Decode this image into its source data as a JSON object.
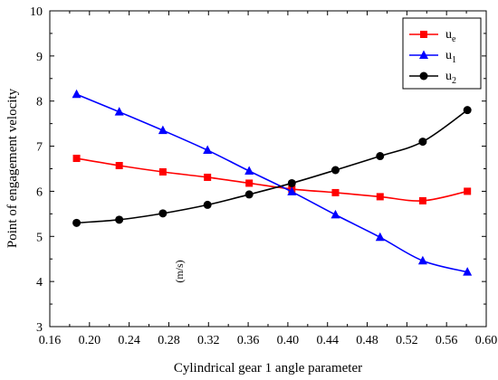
{
  "chart_data": {
    "type": "line",
    "title": "",
    "xlabel": "Cylindrical gear 1 angle parameter",
    "ylabel": "Point of engagement velocity",
    "unit_annotation": "(m/s)",
    "xlim": [
      0.16,
      0.6
    ],
    "ylim": [
      3,
      10
    ],
    "x_ticks": [
      0.16,
      0.2,
      0.24,
      0.28,
      0.32,
      0.36,
      0.4,
      0.44,
      0.48,
      0.52,
      0.56,
      0.6
    ],
    "x_tick_labels": [
      "0.16",
      "0.20",
      "0.24",
      "0.28",
      "0.32",
      "0.36",
      "0.40",
      "0.44",
      "0.48",
      "0.52",
      "0.56",
      "0.60"
    ],
    "y_ticks": [
      3,
      4,
      5,
      6,
      7,
      8,
      9,
      10
    ],
    "y_tick_labels": [
      "3",
      "4",
      "5",
      "6",
      "7",
      "8",
      "9",
      "10"
    ],
    "grid": false,
    "legend_position": "top-right",
    "x": [
      0.187,
      0.23,
      0.274,
      0.319,
      0.361,
      0.404,
      0.448,
      0.493,
      0.536,
      0.581
    ],
    "series": [
      {
        "name": "u",
        "subscript": "e",
        "color": "#ff0000",
        "marker": "square",
        "values": [
          6.73,
          6.57,
          6.43,
          6.31,
          6.18,
          6.05,
          5.97,
          5.88,
          5.79,
          6.0
        ]
      },
      {
        "name": "u",
        "subscript": "1",
        "color": "#0000ff",
        "marker": "triangle",
        "values": [
          8.15,
          7.76,
          7.35,
          6.91,
          6.45,
          5.99,
          5.48,
          4.98,
          4.46,
          4.21
        ]
      },
      {
        "name": "u",
        "subscript": "2",
        "color": "#000000",
        "marker": "circle",
        "values": [
          5.3,
          5.37,
          5.51,
          5.7,
          5.93,
          6.18,
          6.47,
          6.78,
          7.1,
          7.8
        ]
      }
    ]
  }
}
